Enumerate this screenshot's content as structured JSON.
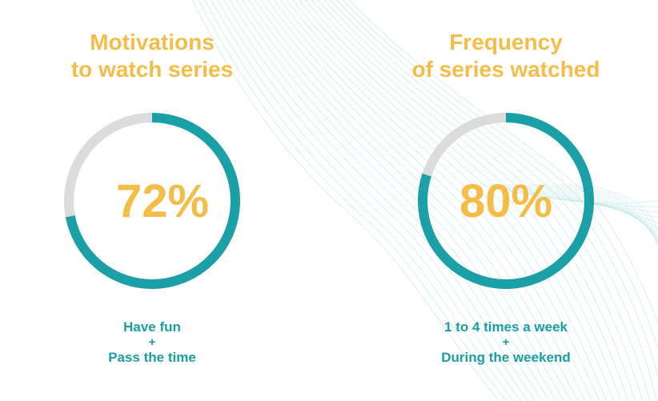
{
  "colors": {
    "accent": "#f3bd48",
    "ring": "#1aa0a6",
    "track": "#dcdcdc",
    "caption": "#1a9ea3"
  },
  "chart_data": [
    {
      "type": "pie",
      "title_line1": "Motivations",
      "title_line2": "to watch series",
      "value": 72,
      "value_label": "72%",
      "caption_line1": "Have fun",
      "caption_sep": "+",
      "caption_line2": "Pass the time"
    },
    {
      "type": "pie",
      "title_line1": "Frequency",
      "title_line2": "of series watched",
      "value": 80,
      "value_label": "80%",
      "caption_line1": "1 to 4 times a week",
      "caption_sep": "+",
      "caption_line2": "During the weekend"
    }
  ]
}
